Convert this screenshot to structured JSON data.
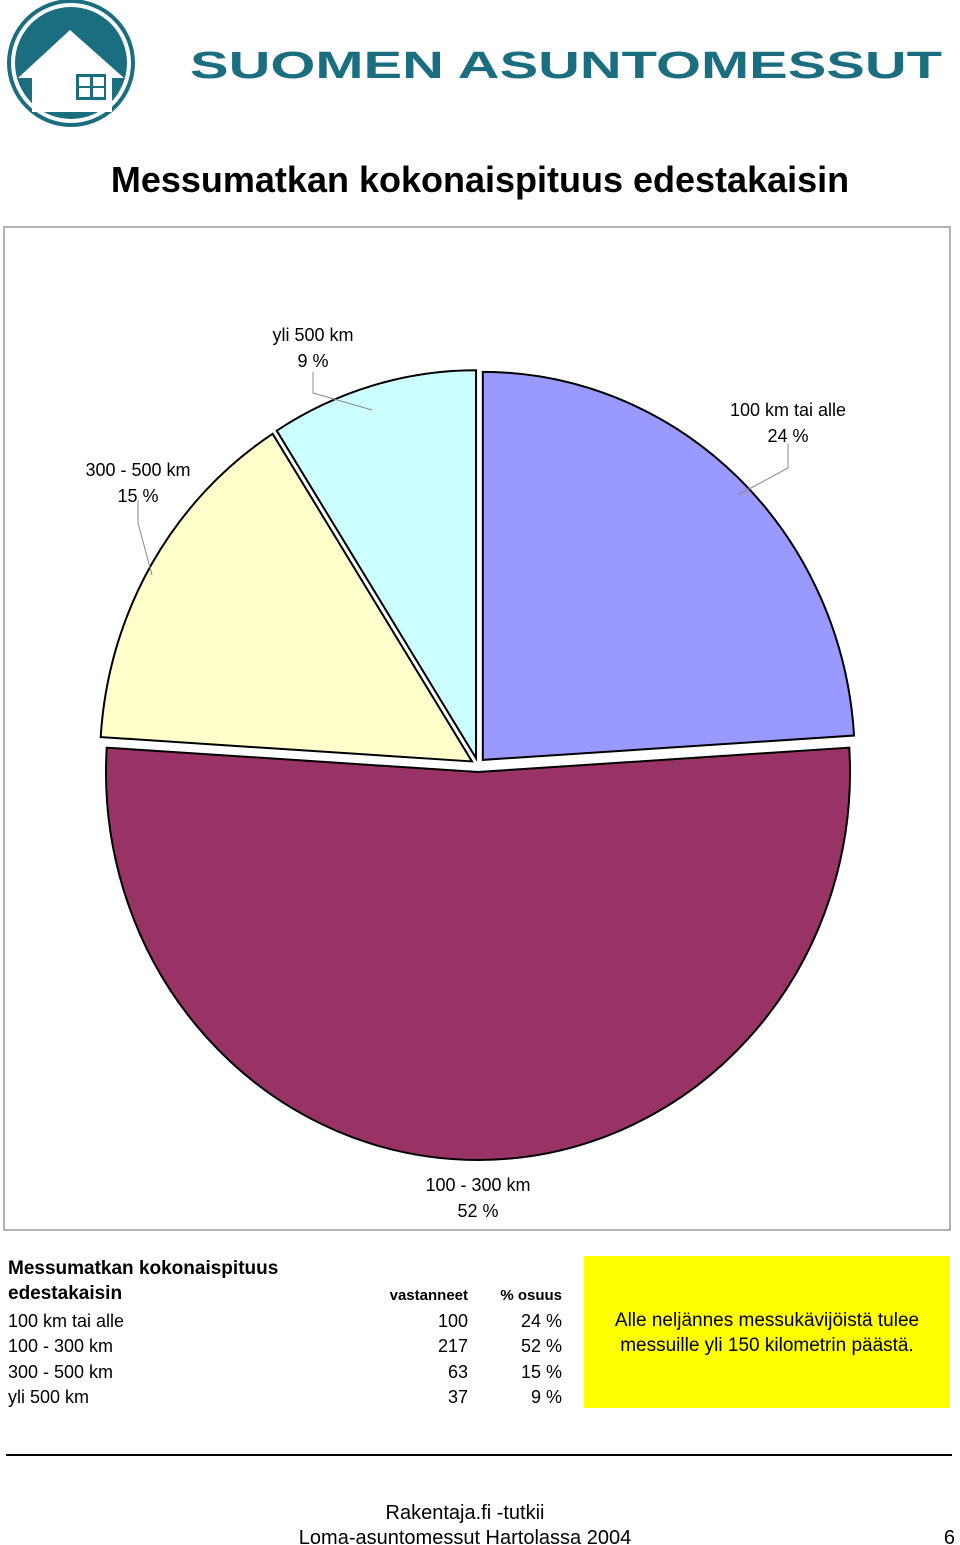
{
  "header": {
    "brand": "SUOMEN ASUNTOMESSUT"
  },
  "chart_data": {
    "type": "pie",
    "title": "Messumatkan kokonaispituus edestakaisin",
    "categories": [
      "100 km tai alle",
      "100 - 300 km",
      "300 - 500 km",
      "yli 500 km"
    ],
    "values": [
      24,
      52,
      15,
      9
    ],
    "value_labels": [
      "24 %",
      "52 %",
      "15 %",
      "9 %"
    ],
    "colors": [
      "#9999ff",
      "#993366",
      "#ffffcc",
      "#ccffff"
    ]
  },
  "table": {
    "title": "Messumatkan kokonaispituus edestakaisin",
    "columns": [
      "vastanneet",
      "% osuus"
    ],
    "rows": [
      [
        "100 km tai alle",
        "100",
        "24 %"
      ],
      [
        "100 - 300 km",
        "217",
        "52 %"
      ],
      [
        "300 - 500 km",
        "63",
        "15 %"
      ],
      [
        "yli 500 km",
        "37",
        "9 %"
      ]
    ]
  },
  "note": "Alle neljännes messukävijöistä tulee messuille yli 150 kilometrin päästä.",
  "footer": {
    "line1": "Rakentaja.fi -tutkii",
    "line2": "Loma-asuntomessut Hartolassa 2004",
    "page": "6"
  }
}
